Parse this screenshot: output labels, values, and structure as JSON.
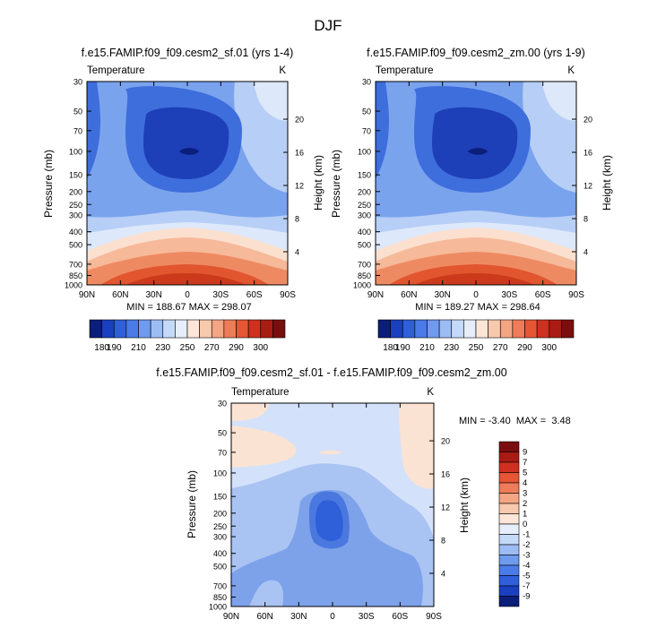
{
  "figure": {
    "title": "DJF"
  },
  "chart_data": [
    {
      "type": "heatmap",
      "title": "f.e15.FAMIP.f09_f09.cesm2_sf.01 (yrs 1-4)",
      "subtitle_left": "Temperature",
      "units": "K",
      "ylabel": "Pressure (mb)",
      "y2label": "Height (km)",
      "x_ticks": [
        "90N",
        "60N",
        "30N",
        "0",
        "30S",
        "60S",
        "90S"
      ],
      "y_ticks": [
        "30",
        "50",
        "70",
        "100",
        "150",
        "200",
        "250",
        "300",
        "400",
        "500",
        "700",
        "850",
        "1000"
      ],
      "y2_ticks": [
        "20",
        "16",
        "12",
        "8",
        "4"
      ],
      "stats": "MIN = 188.67  MAX = 298.07",
      "min": 188.67,
      "max": 298.07,
      "ylim": [
        1000,
        30
      ],
      "xlim": [
        90,
        -90
      ]
    },
    {
      "type": "heatmap",
      "title": "f.e15.FAMIP.f09_f09.cesm2_zm.00 (yrs 1-9)",
      "subtitle_left": "Temperature",
      "units": "K",
      "ylabel": "Pressure (mb)",
      "y2label": "Height (km)",
      "x_ticks": [
        "90N",
        "60N",
        "30N",
        "0",
        "30S",
        "60S",
        "90S"
      ],
      "y_ticks": [
        "30",
        "50",
        "70",
        "100",
        "150",
        "200",
        "250",
        "300",
        "400",
        "500",
        "700",
        "850",
        "1000"
      ],
      "y2_ticks": [
        "20",
        "16",
        "12",
        "8",
        "4"
      ],
      "stats": "MIN = 189.27  MAX = 298.64",
      "min": 189.27,
      "max": 298.64,
      "ylim": [
        1000,
        30
      ],
      "xlim": [
        90,
        -90
      ]
    },
    {
      "type": "heatmap",
      "title": "f.e15.FAMIP.f09_f09.cesm2_sf.01 - f.e15.FAMIP.f09_f09.cesm2_zm.00",
      "subtitle_left": "Temperature",
      "units": "K",
      "ylabel": "Pressure (mb)",
      "y2label": "Height (km)",
      "x_ticks": [
        "90N",
        "60N",
        "30N",
        "0",
        "30S",
        "60S",
        "90S"
      ],
      "y_ticks": [
        "30",
        "50",
        "70",
        "100",
        "150",
        "200",
        "250",
        "300",
        "400",
        "500",
        "700",
        "850",
        "1000"
      ],
      "y2_ticks": [
        "20",
        "16",
        "12",
        "8",
        "4"
      ],
      "stats": "MIN = -3.40  MAX =  3.48",
      "min": -3.4,
      "max": 3.48,
      "ylim": [
        1000,
        30
      ],
      "xlim": [
        90,
        -90
      ]
    }
  ],
  "colorbar_abs": {
    "labels": [
      "180",
      "190",
      "210",
      "230",
      "250",
      "270",
      "290",
      "300"
    ],
    "colors": [
      "#0a1e7a",
      "#1a3fbf",
      "#2f5fd9",
      "#4a7be6",
      "#6f9aee",
      "#9cbcf4",
      "#c4d8f8",
      "#e6eefb",
      "#fde6d8",
      "#f9c9ae",
      "#f4a584",
      "#ee7c58",
      "#e65534",
      "#cf3020",
      "#a81c14",
      "#7a0e0e"
    ]
  },
  "colorbar_diff": {
    "labels": [
      "9",
      "7",
      "5",
      "4",
      "3",
      "2",
      "1",
      "0",
      "-1",
      "-2",
      "-3",
      "-4",
      "-5",
      "-7",
      "-9"
    ],
    "colors": [
      "#7a0e0e",
      "#a81c14",
      "#cf3020",
      "#e65534",
      "#ee7c58",
      "#f4a584",
      "#f9c9ae",
      "#fde6d8",
      "#e6eefb",
      "#c4d8f8",
      "#9cbcf4",
      "#6f9aee",
      "#4a7be6",
      "#2f5fd9",
      "#1a3fbf",
      "#0a1e7a"
    ]
  },
  "palette": {
    "cold_deep": "#1d3fb8",
    "cold_mid": "#3e6edc",
    "cold_light": "#7aa3ee",
    "cold_pale": "#b7cff6",
    "neutral_cool": "#dde8fb",
    "warm_pale": "#fbe0cf",
    "warm_light": "#f6b999",
    "warm_mid": "#ee8a62",
    "warm_deep": "#e1552f",
    "warm_darker": "#cc3a1c",
    "diff_bg": "#d3e2fa",
    "diff_neg1": "#a9c3f3",
    "diff_neg2": "#7da2ea",
    "diff_neg3": "#4a78df",
    "diff_pos": "#fbe3d3"
  }
}
